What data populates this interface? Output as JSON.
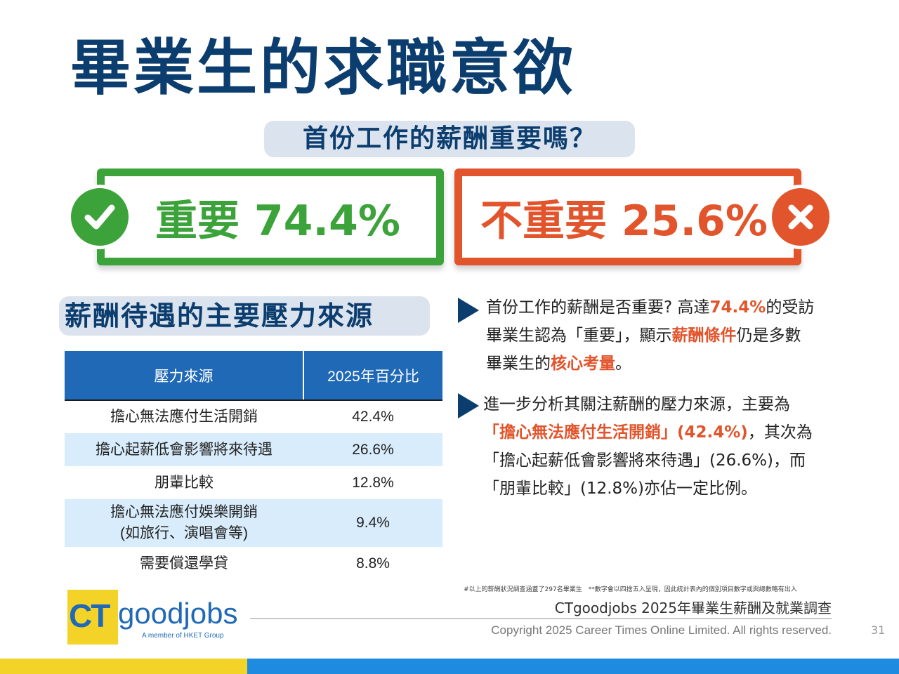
{
  "title": "畢業生的求職意欲",
  "question": "首份工作的薪酬重要嗎？",
  "important": {
    "label": "重要 74.4%",
    "color": "#3ca33a"
  },
  "not_important": {
    "label": "不重要 25.6%",
    "color": "#e2542b"
  },
  "section_title": "薪酬待遇的主要壓力來源",
  "table": {
    "headers": [
      "壓力來源",
      "2025年百分比"
    ],
    "rows": [
      {
        "source": "擔心無法應付生活開銷",
        "pct": "42.4%"
      },
      {
        "source": "擔心起薪低會影響將來待遇",
        "pct": "26.6%"
      },
      {
        "source": "朋輩比較",
        "pct": "12.8%"
      },
      {
        "source_line1": "擔心無法應付娛樂開銷",
        "source_line2": "(如旅行、演唱會等)",
        "pct": "9.4%"
      },
      {
        "source": "需要償還學貸",
        "pct": "8.8%"
      }
    ]
  },
  "para1": {
    "t1": "首份工作的薪酬是否重要? 高達",
    "h1": "74.4%",
    "t2": "的受訪畢業生認為「重要」，顯示",
    "h2": "薪酬條件",
    "t3": "仍是多數畢業生的",
    "h3": "核心考量",
    "t4": "。"
  },
  "para2": {
    "t1": "進一步分析其關注薪酬的壓力來源，主要為",
    "h1": "「擔心無法應付生活開銷」(42.4%)",
    "t2": "，其次為「擔心起薪低會影響將來待遇」(26.6%)，而「朋輩比較」(12.8%)亦佔一定比例。"
  },
  "footnote": "#以上的薪酬狀況調查涵蓋了297名畢業生　**數字會以四捨五入呈現，因此統計表內的個別項目數字或與總數略有出入",
  "source": "CTgoodjobs 2025年畢業生薪酬及就業調查",
  "copyright": "Copyright 2025 Career Times Online Limited. All rights reserved.",
  "page_number": "31",
  "logo": {
    "ct": "CT",
    "goodjobs": "goodjobs",
    "tagline": "A member of HKET Group"
  },
  "icons": {
    "important": "check-icon",
    "not_important": "cross-icon"
  },
  "colors": {
    "navy": "#0b3d6e",
    "blue": "#1f69b6",
    "yellow": "#f4d329",
    "light_blue": "#d8ecfb"
  }
}
